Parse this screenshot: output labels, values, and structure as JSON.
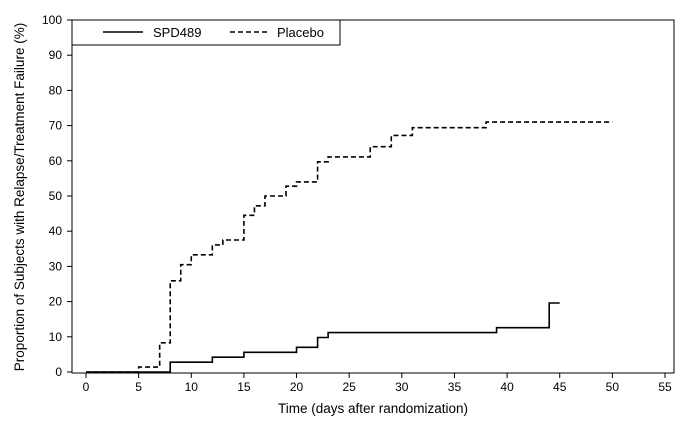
{
  "chart_data": {
    "type": "line",
    "subtype": "step",
    "title": "",
    "xlabel": "Time (days after randomization)",
    "ylabel": "Proportion of Subjects with Relapse/Treatment Failure (%)",
    "xlim": [
      0,
      55
    ],
    "ylim": [
      0,
      100
    ],
    "xticks": [
      0,
      5,
      10,
      15,
      20,
      25,
      30,
      35,
      40,
      45,
      50,
      55
    ],
    "yticks": [
      0,
      10,
      20,
      30,
      40,
      50,
      60,
      70,
      80,
      90,
      100
    ],
    "grid": false,
    "legend_position": "top-left",
    "series": [
      {
        "name": "SPD489",
        "line_style": "solid",
        "color": "#000000",
        "x": [
          0,
          8,
          12,
          15,
          20,
          22,
          23,
          39,
          44,
          45
        ],
        "y": [
          0,
          2.8,
          4.2,
          5.6,
          7.0,
          9.8,
          11.2,
          12.6,
          19.6,
          19.6
        ]
      },
      {
        "name": "Placebo",
        "line_style": "dashed",
        "color": "#000000",
        "x": [
          0,
          5,
          7,
          8,
          9,
          10,
          12,
          13,
          15,
          16,
          17,
          19,
          20,
          22,
          23,
          27,
          29,
          31,
          38,
          50
        ],
        "y": [
          0,
          1.4,
          8.3,
          25.9,
          30.5,
          33.3,
          36.1,
          37.5,
          44.5,
          47.2,
          50.0,
          52.8,
          54.0,
          59.7,
          61.1,
          64.0,
          67.2,
          69.4,
          71.0,
          71.0
        ]
      }
    ]
  }
}
